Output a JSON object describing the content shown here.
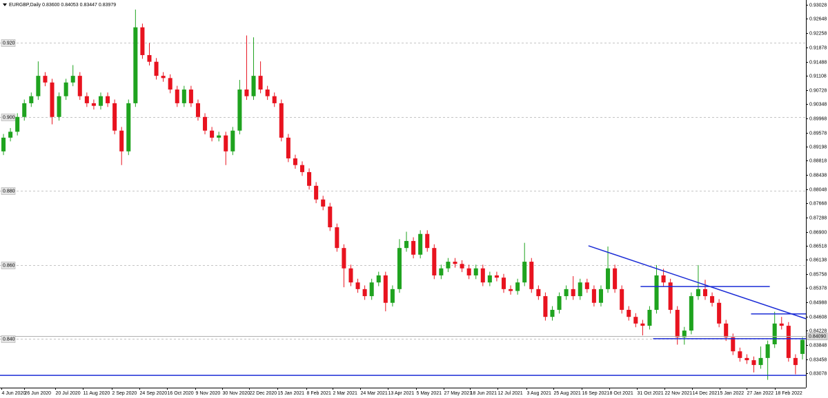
{
  "chart_data": {
    "type": "candlestick",
    "title": "EURGBP,Daily  0.83600 0.84053 0.83447 0.83979",
    "up_color": "#1fa31f",
    "down_color": "#e8131f",
    "line_color": "#1a2bd6",
    "grid": true,
    "xlim": [
      0,
      116
    ],
    "ylim": [
      0.82688,
      0.93158
    ],
    "candles": [
      [
        0.8907,
        0.8954,
        0.8897,
        0.8944
      ],
      [
        0.8944,
        0.897,
        0.8934,
        0.896
      ],
      [
        0.896,
        0.901,
        0.895,
        0.9
      ],
      [
        0.9,
        0.9047,
        0.899,
        0.9037
      ],
      [
        0.9037,
        0.9066,
        0.9027,
        0.9056
      ],
      [
        0.9056,
        0.915,
        0.9046,
        0.9111
      ],
      [
        0.9111,
        0.9121,
        0.9083,
        0.9093
      ],
      [
        0.9093,
        0.9103,
        0.898,
        0.9
      ],
      [
        0.9,
        0.9066,
        0.899,
        0.9056
      ],
      [
        0.9056,
        0.9103,
        0.9046,
        0.9093
      ],
      [
        0.9093,
        0.914,
        0.9083,
        0.9111
      ],
      [
        0.9111,
        0.9121,
        0.9046,
        0.9056
      ],
      [
        0.9056,
        0.9066,
        0.9027,
        0.9037
      ],
      [
        0.9037,
        0.9047,
        0.902,
        0.903
      ],
      [
        0.903,
        0.9066,
        0.902,
        0.9056
      ],
      [
        0.9056,
        0.9066,
        0.9027,
        0.9037
      ],
      [
        0.9037,
        0.9047,
        0.8953,
        0.8963
      ],
      [
        0.8963,
        0.8973,
        0.887,
        0.8907
      ],
      [
        0.8907,
        0.9047,
        0.8897,
        0.9037
      ],
      [
        0.9037,
        0.929,
        0.9027,
        0.9242
      ],
      [
        0.9242,
        0.9252,
        0.9157,
        0.9167
      ],
      [
        0.9167,
        0.92,
        0.9139,
        0.9149
      ],
      [
        0.9149,
        0.9159,
        0.9101,
        0.9111
      ],
      [
        0.9111,
        0.9121,
        0.9095,
        0.9105
      ],
      [
        0.9105,
        0.9115,
        0.9064,
        0.9074
      ],
      [
        0.9074,
        0.9084,
        0.9027,
        0.9037
      ],
      [
        0.9037,
        0.9084,
        0.9027,
        0.9074
      ],
      [
        0.9074,
        0.9084,
        0.9027,
        0.9037
      ],
      [
        0.9037,
        0.9047,
        0.899,
        0.9
      ],
      [
        0.9,
        0.901,
        0.8953,
        0.8963
      ],
      [
        0.8963,
        0.8973,
        0.8934,
        0.8944
      ],
      [
        0.8944,
        0.896,
        0.8934,
        0.895
      ],
      [
        0.895,
        0.896,
        0.887,
        0.8907
      ],
      [
        0.8907,
        0.8973,
        0.8897,
        0.8963
      ],
      [
        0.8963,
        0.91,
        0.8953,
        0.9074
      ],
      [
        0.9074,
        0.922,
        0.9046,
        0.9056
      ],
      [
        0.9056,
        0.9215,
        0.9046,
        0.9111
      ],
      [
        0.9111,
        0.915,
        0.9064,
        0.9074
      ],
      [
        0.9074,
        0.9084,
        0.9046,
        0.9056
      ],
      [
        0.9056,
        0.9066,
        0.9027,
        0.9037
      ],
      [
        0.9037,
        0.9047,
        0.8934,
        0.8944
      ],
      [
        0.8944,
        0.8954,
        0.8878,
        0.8888
      ],
      [
        0.8888,
        0.8898,
        0.886,
        0.887
      ],
      [
        0.887,
        0.888,
        0.8841,
        0.8851
      ],
      [
        0.8851,
        0.8861,
        0.8804,
        0.8814
      ],
      [
        0.8814,
        0.8824,
        0.8767,
        0.8777
      ],
      [
        0.8777,
        0.8787,
        0.8748,
        0.8758
      ],
      [
        0.8758,
        0.8768,
        0.8692,
        0.8702
      ],
      [
        0.8702,
        0.8712,
        0.8636,
        0.8646
      ],
      [
        0.8646,
        0.8656,
        0.854,
        0.8591
      ],
      [
        0.8591,
        0.8601,
        0.8543,
        0.8553
      ],
      [
        0.8553,
        0.8563,
        0.8525,
        0.8535
      ],
      [
        0.8535,
        0.8545,
        0.8506,
        0.8516
      ],
      [
        0.8516,
        0.8563,
        0.8506,
        0.8553
      ],
      [
        0.8553,
        0.8582,
        0.8543,
        0.8572
      ],
      [
        0.8572,
        0.8582,
        0.8475,
        0.8498
      ],
      [
        0.8498,
        0.8545,
        0.8488,
        0.8535
      ],
      [
        0.8535,
        0.867,
        0.8525,
        0.8646
      ],
      [
        0.8646,
        0.869,
        0.8636,
        0.8665
      ],
      [
        0.8665,
        0.8675,
        0.8618,
        0.8628
      ],
      [
        0.8628,
        0.8694,
        0.8618,
        0.8684
      ],
      [
        0.8684,
        0.8694,
        0.8636,
        0.8646
      ],
      [
        0.8646,
        0.8656,
        0.8562,
        0.8572
      ],
      [
        0.8572,
        0.8601,
        0.8562,
        0.8591
      ],
      [
        0.8591,
        0.8619,
        0.8581,
        0.8609
      ],
      [
        0.8609,
        0.8619,
        0.8593,
        0.8603
      ],
      [
        0.8603,
        0.8613,
        0.8581,
        0.8591
      ],
      [
        0.8591,
        0.8601,
        0.8562,
        0.8572
      ],
      [
        0.8572,
        0.8601,
        0.8562,
        0.8591
      ],
      [
        0.8591,
        0.8601,
        0.8543,
        0.8553
      ],
      [
        0.8553,
        0.8582,
        0.8543,
        0.8572
      ],
      [
        0.8572,
        0.8582,
        0.8556,
        0.8566
      ],
      [
        0.8566,
        0.8576,
        0.8525,
        0.8535
      ],
      [
        0.8535,
        0.8545,
        0.852,
        0.853
      ],
      [
        0.853,
        0.8563,
        0.852,
        0.8553
      ],
      [
        0.8553,
        0.866,
        0.8543,
        0.8609
      ],
      [
        0.8609,
        0.8619,
        0.8525,
        0.8535
      ],
      [
        0.8535,
        0.8545,
        0.8506,
        0.8516
      ],
      [
        0.8516,
        0.8526,
        0.845,
        0.846
      ],
      [
        0.846,
        0.8489,
        0.845,
        0.8479
      ],
      [
        0.8479,
        0.8526,
        0.8469,
        0.8516
      ],
      [
        0.8516,
        0.8545,
        0.8506,
        0.8535
      ],
      [
        0.8535,
        0.857,
        0.8506,
        0.8516
      ],
      [
        0.8516,
        0.8563,
        0.8506,
        0.8553
      ],
      [
        0.8553,
        0.8563,
        0.8525,
        0.8535
      ],
      [
        0.8535,
        0.8545,
        0.8488,
        0.8498
      ],
      [
        0.8498,
        0.8545,
        0.8488,
        0.8535
      ],
      [
        0.8535,
        0.865,
        0.8525,
        0.8591
      ],
      [
        0.8591,
        0.8601,
        0.8525,
        0.8535
      ],
      [
        0.8535,
        0.8545,
        0.8469,
        0.8479
      ],
      [
        0.8479,
        0.8489,
        0.845,
        0.846
      ],
      [
        0.846,
        0.847,
        0.8432,
        0.8442
      ],
      [
        0.8442,
        0.8452,
        0.841,
        0.8436
      ],
      [
        0.8436,
        0.8489,
        0.8426,
        0.8479
      ],
      [
        0.8479,
        0.86,
        0.8469,
        0.8572
      ],
      [
        0.8572,
        0.859,
        0.8543,
        0.8553
      ],
      [
        0.8553,
        0.8563,
        0.8469,
        0.8479
      ],
      [
        0.8479,
        0.8489,
        0.8385,
        0.8405
      ],
      [
        0.8405,
        0.8433,
        0.8385,
        0.8423
      ],
      [
        0.8423,
        0.8526,
        0.8413,
        0.8516
      ],
      [
        0.8516,
        0.86,
        0.8506,
        0.8535
      ],
      [
        0.8535,
        0.856,
        0.8506,
        0.8516
      ],
      [
        0.8516,
        0.8526,
        0.8488,
        0.8498
      ],
      [
        0.8498,
        0.8508,
        0.8432,
        0.8442
      ],
      [
        0.8442,
        0.8452,
        0.8395,
        0.8405
      ],
      [
        0.8405,
        0.8415,
        0.8357,
        0.8367
      ],
      [
        0.8367,
        0.8377,
        0.8339,
        0.8349
      ],
      [
        0.8349,
        0.8359,
        0.8333,
        0.8343
      ],
      [
        0.8343,
        0.8353,
        0.831,
        0.833
      ],
      [
        0.833,
        0.838,
        0.832,
        0.8349
      ],
      [
        0.8349,
        0.8396,
        0.829,
        0.8386
      ],
      [
        0.8386,
        0.8474,
        0.8376,
        0.8442
      ],
      [
        0.8442,
        0.846,
        0.8426,
        0.8436
      ],
      [
        0.8436,
        0.8446,
        0.8339,
        0.8349
      ],
      [
        0.8349,
        0.8359,
        0.8305,
        0.833
      ],
      [
        0.836,
        0.8405,
        0.8345,
        0.8398
      ]
    ],
    "xticks": [
      {
        "value": 0.2,
        "label": "4 Jun 2020"
      },
      {
        "value": 3.5,
        "label": "26 Jun 2020"
      },
      {
        "value": 7.9,
        "label": "20 Jul 2020"
      },
      {
        "value": 11.9,
        "label": "11 Aug 2020"
      },
      {
        "value": 16.1,
        "label": "2 Sep 2020"
      },
      {
        "value": 20.1,
        "label": "24 Sep 2020"
      },
      {
        "value": 24.0,
        "label": "16 Oct 2020"
      },
      {
        "value": 28.1,
        "label": "9 Nov 2020"
      },
      {
        "value": 32.0,
        "label": "30 Nov 2020"
      },
      {
        "value": 35.9,
        "label": "22 Dec 2020"
      },
      {
        "value": 39.9,
        "label": "15 Jan 2021"
      },
      {
        "value": 44.1,
        "label": "8 Feb 2021"
      },
      {
        "value": 47.9,
        "label": "2 Mar 2021"
      },
      {
        "value": 51.8,
        "label": "24 Mar 2021"
      },
      {
        "value": 55.8,
        "label": "13 Apr 2021"
      },
      {
        "value": 59.9,
        "label": "5 May 2021"
      },
      {
        "value": 63.9,
        "label": "27 May 2021"
      },
      {
        "value": 67.6,
        "label": "18 Jun 2021"
      },
      {
        "value": 71.6,
        "label": "12 Jul 2021"
      },
      {
        "value": 75.8,
        "label": "3 Aug 2021"
      },
      {
        "value": 79.7,
        "label": "25 Aug 2021"
      },
      {
        "value": 83.7,
        "label": "16 Sep 2021"
      },
      {
        "value": 87.7,
        "label": "8 Oct 2021"
      },
      {
        "value": 91.7,
        "label": "31 Oct 2021"
      },
      {
        "value": 95.6,
        "label": "22 Nov 2021"
      },
      {
        "value": 99.6,
        "label": "14 Dec 2021"
      },
      {
        "value": 103.6,
        "label": "5 Jan 2022"
      },
      {
        "value": 107.5,
        "label": "27 Jan 2022"
      },
      {
        "value": 111.5,
        "label": "18 Feb 2022"
      }
    ],
    "yticks": [
      0.93028,
      0.92648,
      0.92258,
      0.91878,
      0.91488,
      0.91108,
      0.90728,
      0.90348,
      0.89968,
      0.89578,
      0.89198,
      0.88818,
      0.88438,
      0.88048,
      0.87668,
      0.87288,
      {
        "value": 0.869,
        "label": "0.86900"
      },
      0.86518,
      0.86138,
      0.85758,
      0.85378,
      0.84988,
      0.84608,
      0.84228,
      0.83848,
      0.83458,
      0.83078
    ],
    "left_levels": [
      {
        "value": 0.92,
        "label": "0.920"
      },
      {
        "value": 0.9,
        "label": "0.900"
      },
      {
        "value": 0.88,
        "label": "0.880"
      },
      {
        "value": 0.86,
        "label": "0.860"
      },
      {
        "value": 0.84,
        "label": "0.840"
      }
    ],
    "price_line": {
      "value": 0.8409,
      "label": "0.84090"
    },
    "lines": [
      {
        "x1": 84.7,
        "y1": 0.8652,
        "x2": 116,
        "y2": 0.8455
      },
      {
        "x1": 92.2,
        "y1": 0.8542,
        "x2": 110.8,
        "y2": 0.8542
      },
      {
        "x1": 108.1,
        "y1": 0.8468,
        "x2": 116,
        "y2": 0.8468
      },
      {
        "x1": 94,
        "y1": 0.8401,
        "x2": 116,
        "y2": 0.8401
      },
      {
        "x1": 0,
        "y1": 0.8302,
        "x2": 116,
        "y2": 0.8302
      }
    ]
  }
}
